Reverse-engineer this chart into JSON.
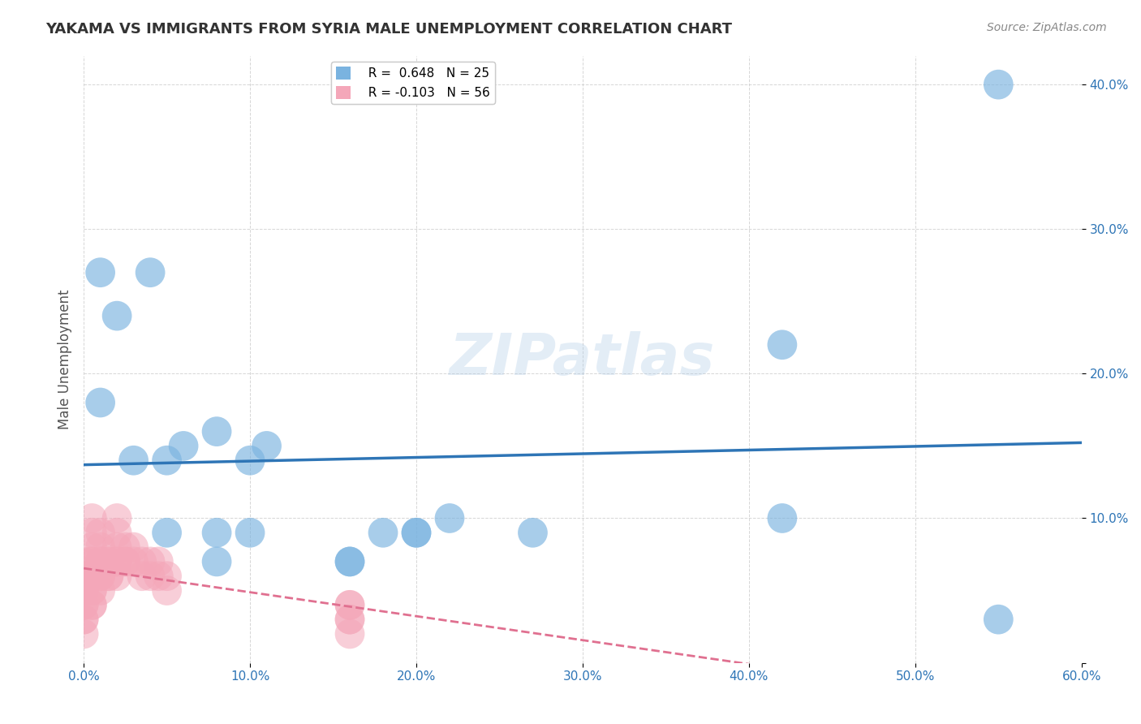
{
  "title": "YAKAMA VS IMMIGRANTS FROM SYRIA MALE UNEMPLOYMENT CORRELATION CHART",
  "source": "Source: ZipAtlas.com",
  "xlabel_color": "#5b9bd5",
  "ylabel": "Male Unemployment",
  "xlim": [
    0.0,
    0.6
  ],
  "ylim": [
    0.0,
    0.42
  ],
  "xticks": [
    0.0,
    0.1,
    0.2,
    0.3,
    0.4,
    0.5,
    0.6
  ],
  "yticks": [
    0.0,
    0.1,
    0.2,
    0.3,
    0.4
  ],
  "ytick_labels": [
    "",
    "10.0%",
    "20.0%",
    "30.0%",
    "40.0%"
  ],
  "xtick_labels": [
    "0.0%",
    "10.0%",
    "20.0%",
    "30.0%",
    "40.0%",
    "50.0%",
    "60.0%"
  ],
  "grid_color": "#cccccc",
  "watermark": "ZIPatlas",
  "legend_r1": "R =  0.648   N = 25",
  "legend_r2": "R = -0.103   N = 56",
  "blue_color": "#7ab3e0",
  "pink_color": "#f4a7b9",
  "blue_line_color": "#2e75b6",
  "pink_line_color": "#e07090",
  "yakama_x": [
    0.02,
    0.04,
    0.01,
    0.01,
    0.03,
    0.05,
    0.05,
    0.06,
    0.08,
    0.08,
    0.08,
    0.1,
    0.1,
    0.11,
    0.16,
    0.16,
    0.18,
    0.2,
    0.2,
    0.22,
    0.27,
    0.42,
    0.42,
    0.55,
    0.55
  ],
  "yakama_y": [
    0.24,
    0.27,
    0.27,
    0.18,
    0.14,
    0.14,
    0.09,
    0.15,
    0.16,
    0.09,
    0.07,
    0.09,
    0.14,
    0.15,
    0.07,
    0.07,
    0.09,
    0.09,
    0.09,
    0.1,
    0.09,
    0.22,
    0.1,
    0.4,
    0.03
  ],
  "syria_x": [
    0.0,
    0.0,
    0.0,
    0.0,
    0.0,
    0.0,
    0.0,
    0.0,
    0.0,
    0.0,
    0.005,
    0.005,
    0.005,
    0.005,
    0.005,
    0.005,
    0.005,
    0.005,
    0.005,
    0.005,
    0.005,
    0.01,
    0.01,
    0.01,
    0.01,
    0.01,
    0.01,
    0.01,
    0.015,
    0.015,
    0.015,
    0.015,
    0.02,
    0.02,
    0.02,
    0.02,
    0.02,
    0.02,
    0.025,
    0.025,
    0.025,
    0.03,
    0.03,
    0.035,
    0.035,
    0.04,
    0.04,
    0.045,
    0.045,
    0.05,
    0.05,
    0.16,
    0.16,
    0.16,
    0.16,
    0.16
  ],
  "syria_y": [
    0.07,
    0.06,
    0.06,
    0.05,
    0.05,
    0.04,
    0.04,
    0.03,
    0.03,
    0.02,
    0.1,
    0.09,
    0.08,
    0.07,
    0.07,
    0.06,
    0.06,
    0.05,
    0.05,
    0.04,
    0.04,
    0.09,
    0.08,
    0.07,
    0.07,
    0.06,
    0.06,
    0.05,
    0.07,
    0.07,
    0.06,
    0.06,
    0.1,
    0.09,
    0.08,
    0.07,
    0.07,
    0.06,
    0.08,
    0.07,
    0.07,
    0.08,
    0.07,
    0.07,
    0.06,
    0.07,
    0.06,
    0.07,
    0.06,
    0.06,
    0.05,
    0.04,
    0.04,
    0.03,
    0.03,
    0.02
  ]
}
